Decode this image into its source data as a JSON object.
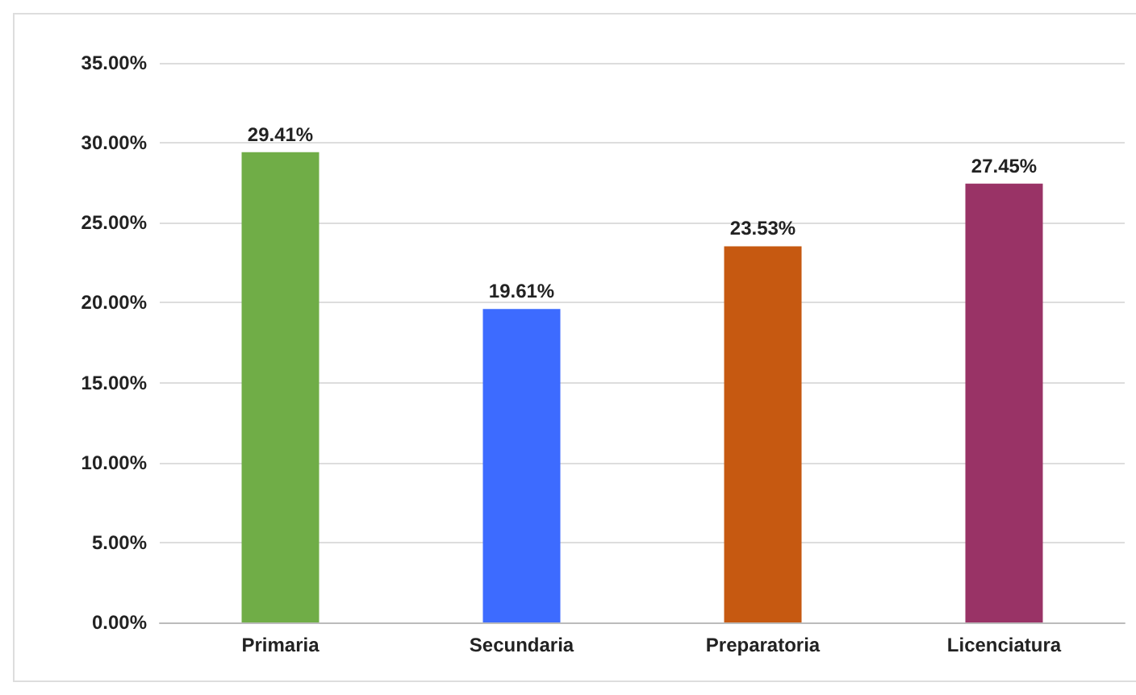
{
  "chart_data": {
    "type": "bar",
    "categories": [
      "Primaria",
      "Secundaria",
      "Preparatoria",
      "Licenciatura"
    ],
    "values": [
      29.41,
      19.61,
      23.53,
      27.45
    ],
    "colors": [
      "#70ad47",
      "#3d6bff",
      "#c65911",
      "#993366"
    ],
    "value_labels": [
      "29.41%",
      "19.61%",
      "23.53%",
      "27.45%"
    ],
    "ylim": [
      0,
      35
    ],
    "yticks": [
      {
        "value": 0,
        "label": "0.00%"
      },
      {
        "value": 5,
        "label": "5.00%"
      },
      {
        "value": 10,
        "label": "10.00%"
      },
      {
        "value": 15,
        "label": "15.00%"
      },
      {
        "value": 20,
        "label": "20.00%"
      },
      {
        "value": 25,
        "label": "25.00%"
      },
      {
        "value": 30,
        "label": "30.00%"
      },
      {
        "value": 35,
        "label": "35.00%"
      }
    ],
    "grid": true
  }
}
